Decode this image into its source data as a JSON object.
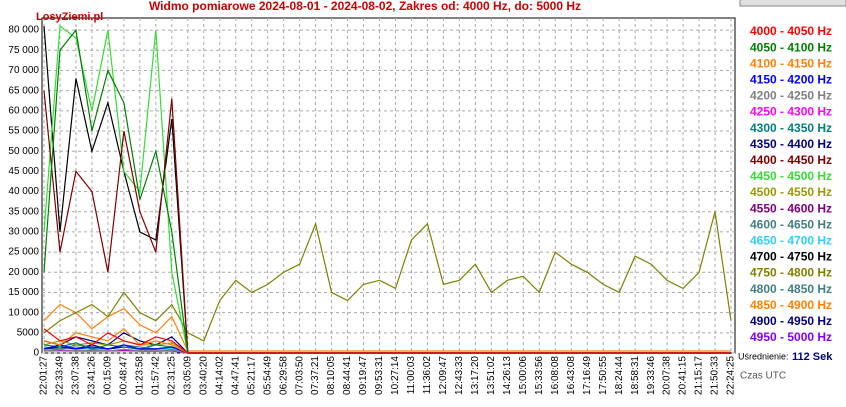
{
  "chart_data": {
    "type": "line",
    "title": "Widmo pomiarowe 2024-08-01 - 2024-08-02, Zakres od: 4000 Hz, do: 5000 Hz",
    "watermark": "LosyZiemi.pl",
    "averaging_label": "Uśrednienie:",
    "averaging_value": "112 Sek",
    "time_label": "Czas UTC",
    "grid": true,
    "ylim": [
      0,
      83000
    ],
    "yticks": [
      0,
      5000,
      {
        "value": 10000,
        "label": "10 000"
      },
      {
        "value": 15000,
        "label": "15 000"
      },
      {
        "value": 20000,
        "label": "20 000"
      },
      {
        "value": 25000,
        "label": "25 000"
      },
      {
        "value": 30000,
        "label": "30 000"
      },
      {
        "value": 35000,
        "label": "35 000"
      },
      {
        "value": 40000,
        "label": "40 000"
      },
      {
        "value": 45000,
        "label": "45 000"
      },
      {
        "value": 50000,
        "label": "50 000"
      },
      {
        "value": 55000,
        "label": "55 000"
      },
      {
        "value": 60000,
        "label": "60 000"
      },
      {
        "value": 65000,
        "label": "65 000"
      },
      {
        "value": 70000,
        "label": "70 000"
      },
      {
        "value": 75000,
        "label": "75 000"
      },
      {
        "value": 80000,
        "label": "80 000"
      }
    ],
    "categories": [
      "22:01:27",
      "22:33:49",
      "23:07:38",
      "23:41:26",
      "00:15:09",
      "00:48:47",
      "01:23:58",
      "01:57:42",
      "02:31:25",
      "03:05:09",
      "03:40:20",
      "04:14:02",
      "04:47:41",
      "05:21:17",
      "05:54:49",
      "06:29:58",
      "07:03:50",
      "07:37:21",
      "08:10:05",
      "08:44:41",
      "09:19:47",
      "09:53:31",
      "10:27:14",
      "11:00:03",
      "11:36:02",
      "12:09:47",
      "12:43:33",
      "13:17:20",
      "13:51:02",
      "14:26:13",
      "15:00:06",
      "15:33:56",
      "16:08:08",
      "16:43:08",
      "17:16:49",
      "17:50:55",
      "18:24:44",
      "18:58:31",
      "19:33:46",
      "20:07:38",
      "20:41:15",
      "21:15:17",
      "21:50:33",
      "22:24:25"
    ],
    "series": [
      {
        "name": "4000 - 4050 Hz",
        "color": "#ff0000",
        "values": [
          6000,
          3000,
          4000,
          2000,
          5000,
          3000,
          2000,
          4000,
          3000,
          0,
          0,
          0,
          0,
          0,
          0,
          0,
          0,
          0,
          0,
          0,
          0,
          0,
          0,
          0,
          0,
          0,
          0,
          0,
          0,
          0,
          0,
          0,
          0,
          0,
          0,
          0,
          0,
          0,
          0,
          0,
          0,
          0,
          0,
          0
        ]
      },
      {
        "name": "4050 - 4100 Hz",
        "color": "#008000",
        "values": [
          20000,
          75000,
          80000,
          55000,
          70000,
          62000,
          38000,
          50000,
          30000,
          0,
          0,
          0,
          0,
          0,
          0,
          0,
          0,
          0,
          0,
          0,
          0,
          0,
          0,
          0,
          0,
          0,
          0,
          0,
          0,
          0,
          0,
          0,
          0,
          0,
          0,
          0,
          0,
          0,
          0,
          0,
          0,
          0,
          0,
          0
        ]
      },
      {
        "name": "4100 - 4150 Hz",
        "color": "#ff8000",
        "values": [
          3000,
          2000,
          5000,
          4000,
          3000,
          6000,
          2000,
          3000,
          2000,
          0,
          0,
          0,
          0,
          0,
          0,
          0,
          0,
          0,
          0,
          0,
          0,
          0,
          0,
          0,
          0,
          0,
          0,
          0,
          0,
          0,
          0,
          0,
          0,
          0,
          0,
          0,
          0,
          0,
          0,
          0,
          0,
          0,
          0,
          0
        ]
      },
      {
        "name": "4150 - 4200 Hz",
        "color": "#0000ff",
        "values": [
          1000,
          2000,
          1000,
          1500,
          1000,
          2000,
          1000,
          1000,
          1500,
          0,
          0,
          0,
          0,
          0,
          0,
          0,
          0,
          0,
          0,
          0,
          0,
          0,
          0,
          0,
          0,
          0,
          0,
          0,
          0,
          0,
          0,
          0,
          0,
          0,
          0,
          0,
          0,
          0,
          0,
          0,
          0,
          0,
          0,
          0
        ]
      },
      {
        "name": "4200 - 4250 Hz",
        "color": "#808080",
        "values": [
          500,
          800,
          600,
          700,
          500,
          900,
          600,
          500,
          700,
          0,
          0,
          0,
          0,
          0,
          0,
          0,
          0,
          0,
          0,
          0,
          0,
          0,
          0,
          0,
          0,
          0,
          0,
          0,
          0,
          0,
          0,
          0,
          0,
          0,
          0,
          0,
          0,
          0,
          0,
          0,
          0,
          0,
          0,
          0
        ]
      },
      {
        "name": "4250 - 4300 Hz",
        "color": "#ff00ff",
        "values": [
          500,
          700,
          500,
          600,
          500,
          800,
          500,
          400,
          600,
          0,
          0,
          0,
          0,
          0,
          0,
          0,
          0,
          0,
          0,
          0,
          0,
          0,
          0,
          0,
          0,
          0,
          0,
          0,
          0,
          0,
          0,
          0,
          0,
          0,
          0,
          0,
          0,
          0,
          0,
          0,
          0,
          0,
          0,
          0
        ]
      },
      {
        "name": "4300 - 4350 Hz",
        "color": "#008080",
        "values": [
          2000,
          1500,
          2500,
          1000,
          2000,
          1500,
          1000,
          2000,
          1500,
          0,
          0,
          0,
          0,
          0,
          0,
          0,
          0,
          0,
          0,
          0,
          0,
          0,
          0,
          0,
          0,
          0,
          0,
          0,
          0,
          0,
          0,
          0,
          0,
          0,
          0,
          0,
          0,
          0,
          0,
          0,
          0,
          0,
          0,
          0
        ]
      },
      {
        "name": "4350 - 4400 Hz",
        "color": "#000080",
        "values": [
          1000,
          1500,
          1000,
          2000,
          1000,
          1500,
          1000,
          1000,
          1500,
          0,
          0,
          0,
          0,
          0,
          0,
          0,
          0,
          0,
          0,
          0,
          0,
          0,
          0,
          0,
          0,
          0,
          0,
          0,
          0,
          0,
          0,
          0,
          0,
          0,
          0,
          0,
          0,
          0,
          0,
          0,
          0,
          0,
          0,
          0
        ]
      },
      {
        "name": "4400 - 4450 Hz",
        "color": "#800000",
        "values": [
          65000,
          25000,
          45000,
          40000,
          20000,
          55000,
          35000,
          25000,
          63000,
          0,
          0,
          0,
          0,
          0,
          0,
          0,
          0,
          0,
          0,
          0,
          0,
          0,
          0,
          0,
          0,
          0,
          0,
          0,
          0,
          0,
          0,
          0,
          0,
          0,
          0,
          0,
          0,
          0,
          0,
          0,
          0,
          0,
          0,
          0
        ]
      },
      {
        "name": "4450 - 4500 Hz",
        "color": "#33dd33",
        "values": [
          30000,
          81000,
          78000,
          60000,
          80000,
          45000,
          40000,
          80000,
          20000,
          0,
          0,
          0,
          0,
          0,
          0,
          0,
          0,
          0,
          0,
          0,
          0,
          0,
          0,
          0,
          0,
          0,
          0,
          0,
          0,
          0,
          0,
          0,
          0,
          0,
          0,
          0,
          0,
          0,
          0,
          0,
          0,
          0,
          0,
          0
        ]
      },
      {
        "name": "4500 - 4550 Hz",
        "color": "#999900",
        "values": [
          2000,
          3000,
          2000,
          2500,
          2000,
          3000,
          2000,
          2000,
          2500,
          0,
          0,
          0,
          0,
          0,
          0,
          0,
          0,
          0,
          0,
          0,
          0,
          0,
          0,
          0,
          0,
          0,
          0,
          0,
          0,
          0,
          0,
          0,
          0,
          0,
          0,
          0,
          0,
          0,
          0,
          0,
          0,
          0,
          0,
          0
        ]
      },
      {
        "name": "4550 - 4600 Hz",
        "color": "#800080",
        "values": [
          500,
          600,
          500,
          700,
          500,
          600,
          500,
          500,
          600,
          0,
          0,
          0,
          0,
          0,
          0,
          0,
          0,
          0,
          0,
          0,
          0,
          0,
          0,
          0,
          0,
          0,
          0,
          0,
          0,
          0,
          0,
          0,
          0,
          0,
          0,
          0,
          0,
          0,
          0,
          0,
          0,
          0,
          0,
          0
        ]
      },
      {
        "name": "4600 - 4650 Hz",
        "color": "#408080",
        "values": [
          1500,
          1000,
          2000,
          1500,
          1000,
          2000,
          1500,
          1000,
          1500,
          0,
          0,
          0,
          0,
          0,
          0,
          0,
          0,
          0,
          0,
          0,
          0,
          0,
          0,
          0,
          0,
          0,
          0,
          0,
          0,
          0,
          0,
          0,
          0,
          0,
          0,
          0,
          0,
          0,
          0,
          0,
          0,
          0,
          0,
          0
        ]
      },
      {
        "name": "4650 - 4700 Hz",
        "color": "#33ccff",
        "values": [
          1000,
          1500,
          1000,
          1200,
          1000,
          1500,
          1000,
          1000,
          1200,
          0,
          0,
          0,
          0,
          0,
          0,
          0,
          0,
          0,
          0,
          0,
          0,
          0,
          0,
          0,
          0,
          0,
          0,
          0,
          0,
          0,
          0,
          0,
          0,
          0,
          0,
          0,
          0,
          0,
          0,
          0,
          0,
          0,
          0,
          0
        ]
      },
      {
        "name": "4700 - 4750 Hz",
        "color": "#000000",
        "values": [
          81000,
          30000,
          68000,
          50000,
          62000,
          45000,
          30000,
          28000,
          58000,
          0,
          0,
          0,
          0,
          0,
          0,
          0,
          0,
          0,
          0,
          0,
          0,
          0,
          0,
          0,
          0,
          0,
          0,
          0,
          0,
          0,
          0,
          0,
          0,
          0,
          0,
          0,
          0,
          0,
          0,
          0,
          0,
          0,
          0,
          0
        ]
      },
      {
        "name": "4750 - 4800 Hz",
        "color": "#808000",
        "values": [
          5000,
          8000,
          10000,
          12000,
          9000,
          15000,
          10000,
          8000,
          12000,
          5000,
          3000,
          13000,
          18000,
          15000,
          17000,
          20000,
          22000,
          32000,
          15000,
          13000,
          17000,
          18000,
          16000,
          28000,
          32000,
          17000,
          18000,
          22000,
          15000,
          18000,
          19000,
          15000,
          25000,
          22000,
          20000,
          17000,
          15000,
          24000,
          22000,
          18000,
          16000,
          20000,
          35000,
          8000
        ]
      },
      {
        "name": "4800 - 4850 Hz",
        "color": "#408080",
        "values": [
          1000,
          1000,
          1500,
          1000,
          1000,
          1500,
          1000,
          1000,
          1000,
          0,
          0,
          0,
          0,
          0,
          0,
          0,
          0,
          0,
          0,
          0,
          0,
          0,
          0,
          0,
          0,
          0,
          0,
          0,
          0,
          0,
          0,
          0,
          0,
          0,
          0,
          0,
          0,
          0,
          0,
          0,
          0,
          0,
          0,
          0
        ]
      },
      {
        "name": "4850 - 4900 Hz",
        "color": "#ff8000",
        "values": [
          8000,
          12000,
          10000,
          6000,
          9000,
          11000,
          7000,
          5000,
          9000,
          500,
          500,
          500,
          500,
          500,
          500,
          500,
          500,
          500,
          500,
          500,
          500,
          500,
          500,
          500,
          500,
          500,
          500,
          500,
          500,
          500,
          500,
          500,
          500,
          500,
          500,
          500,
          500,
          500,
          500,
          500,
          500,
          500,
          500,
          500
        ]
      },
      {
        "name": "4900 - 4950 Hz",
        "color": "#000080",
        "values": [
          3000,
          2000,
          4000,
          3000,
          2000,
          5000,
          3000,
          2000,
          4000,
          0,
          0,
          0,
          0,
          0,
          0,
          0,
          0,
          0,
          0,
          0,
          0,
          0,
          0,
          0,
          0,
          0,
          0,
          0,
          0,
          0,
          0,
          0,
          0,
          0,
          0,
          0,
          0,
          0,
          0,
          0,
          0,
          0,
          0,
          0
        ]
      },
      {
        "name": "4950 - 5000 Hz",
        "color": "#8000ff",
        "values": [
          500,
          600,
          500,
          500,
          500,
          600,
          500,
          500,
          500,
          0,
          0,
          0,
          0,
          0,
          0,
          0,
          0,
          0,
          0,
          0,
          0,
          0,
          0,
          0,
          0,
          0,
          0,
          0,
          0,
          0,
          0,
          0,
          0,
          0,
          0,
          0,
          0,
          0,
          0,
          0,
          0,
          0,
          0,
          0
        ]
      }
    ]
  }
}
